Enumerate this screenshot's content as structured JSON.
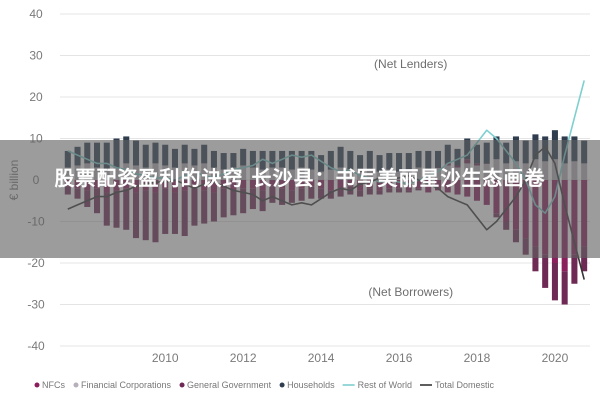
{
  "banner": {
    "title": "股票配资盈利的诀窍 长沙县：书写美丽星沙生态画卷"
  },
  "colors": {
    "nfcs": "#8a1f5c",
    "financial_corporations": "#b7b0bc",
    "general_government": "#6e2a55",
    "households": "#2f3d4f",
    "rest_of_world": "#7ecfcf",
    "total_domestic": "#353535",
    "grid": "#e4e4e4",
    "axis_text": "#7a7a7a"
  },
  "chart_data": {
    "type": "bar",
    "stacked": true,
    "ylabel": "€ billion",
    "ylim": [
      -40,
      40
    ],
    "yticks": [
      -40,
      -30,
      -20,
      -10,
      0,
      10,
      20,
      30,
      40
    ],
    "xlim": [
      2007.3,
      2020.9
    ],
    "xticks": [
      2010,
      2012,
      2014,
      2016,
      2018,
      2020
    ],
    "grid": true,
    "annotations": [
      {
        "text": "(Net Lenders)",
        "x": 2016.3,
        "y": 27
      },
      {
        "text": "(Net Borrowers)",
        "x": 2016.3,
        "y": -28
      }
    ],
    "legend_position": "bottom",
    "x": [
      2007.5,
      2007.75,
      2008.0,
      2008.25,
      2008.5,
      2008.75,
      2009.0,
      2009.25,
      2009.5,
      2009.75,
      2010.0,
      2010.25,
      2010.5,
      2010.75,
      2011.0,
      2011.25,
      2011.5,
      2011.75,
      2012.0,
      2012.25,
      2012.5,
      2012.75,
      2013.0,
      2013.25,
      2013.5,
      2013.75,
      2014.0,
      2014.25,
      2014.5,
      2014.75,
      2015.0,
      2015.25,
      2015.5,
      2015.75,
      2016.0,
      2016.25,
      2016.5,
      2016.75,
      2017.0,
      2017.25,
      2017.5,
      2017.75,
      2018.0,
      2018.25,
      2018.5,
      2018.75,
      2019.0,
      2019.25,
      2019.5,
      2019.75,
      2020.0,
      2020.25,
      2020.5,
      2020.75
    ],
    "series": [
      {
        "name": "NFCs",
        "kind": "bar",
        "values": [
          -1.5,
          -2,
          -2.5,
          -2,
          -3,
          -2.5,
          -2,
          -3,
          -2.5,
          -3,
          -2,
          -3,
          -2.5,
          -2,
          -2.5,
          -3,
          -2,
          -2.5,
          -2,
          -2,
          -2.5,
          -1.5,
          -2,
          -2.5,
          -2,
          -1.5,
          -2,
          -2.5,
          -2,
          -1.5,
          -2.5,
          -2,
          -2.5,
          -2,
          -2,
          -2.5,
          -2,
          -3,
          -2.5,
          -3,
          -3.5,
          -4,
          -5,
          -6,
          -8,
          -10,
          -12,
          -14,
          -16,
          -18,
          -20,
          -22,
          -18,
          -16
        ]
      },
      {
        "name": "Financial Corporations",
        "kind": "bar",
        "values": [
          3,
          3.5,
          4,
          3,
          2.5,
          3,
          4,
          3.5,
          3,
          4,
          3.5,
          3,
          4,
          3.5,
          4,
          3,
          2.5,
          3,
          3.5,
          3,
          2.5,
          3,
          3,
          2.5,
          3,
          2.5,
          2,
          2.5,
          3,
          2.5,
          2,
          2.5,
          2,
          2.5,
          2,
          2.5,
          3,
          2.5,
          3,
          3.5,
          3,
          4,
          3.5,
          4,
          5,
          4,
          4.5,
          4,
          5,
          4.5,
          5,
          4,
          4.5,
          4
        ]
      },
      {
        "name": "General Government",
        "kind": "bar",
        "values": [
          -2,
          -2.5,
          -4,
          -6,
          -8,
          -9,
          -10,
          -11,
          -12,
          -12,
          -11,
          -10,
          -11,
          -9,
          -8,
          -7,
          -7,
          -6,
          -6,
          -5,
          -5,
          -4,
          -4,
          -3,
          -3,
          -3,
          -2.5,
          -2,
          -2,
          -2,
          -1.5,
          -1.5,
          -1,
          -1,
          -1,
          -0.5,
          -0.5,
          0,
          0,
          0.5,
          0.5,
          1,
          0.5,
          0,
          -1,
          -2,
          -3,
          -4,
          -6,
          -8,
          -9,
          -8,
          -7,
          -6
        ]
      },
      {
        "name": "Households",
        "kind": "bar",
        "values": [
          4,
          4.5,
          5,
          6,
          6.5,
          7,
          6.5,
          6,
          5.5,
          5,
          5,
          4.5,
          4.5,
          4,
          4.5,
          4,
          4,
          3.5,
          4,
          4,
          4.5,
          4,
          4,
          4.5,
          4,
          4.5,
          4,
          4.5,
          5,
          4.5,
          4,
          4.5,
          4,
          4,
          4.5,
          4,
          4,
          4.5,
          4,
          4.5,
          4,
          5,
          4.5,
          5,
          5.5,
          5,
          6,
          5.5,
          6,
          6,
          7,
          6.5,
          6,
          5.5
        ]
      },
      {
        "name": "Rest of World",
        "kind": "line",
        "values": [
          7,
          6,
          5,
          4,
          4,
          3,
          2.5,
          1.5,
          1,
          0.5,
          0.5,
          0,
          1,
          2,
          1,
          0.5,
          1.5,
          2.5,
          3,
          3.5,
          5,
          4,
          5,
          6,
          5.5,
          6,
          4.5,
          3,
          2,
          2.5,
          1,
          0.5,
          -0.5,
          0,
          -0.5,
          -1,
          0,
          1,
          2,
          4,
          5,
          6,
          9,
          12,
          10,
          7,
          4,
          0,
          -6,
          -8,
          -4,
          6,
          15,
          24
        ]
      },
      {
        "name": "Total Domestic",
        "kind": "line",
        "values": [
          -7,
          -6,
          -5,
          -4,
          -4,
          -3,
          -2.5,
          -1.5,
          -1,
          -0.5,
          -0.5,
          0,
          -1,
          -2,
          -1,
          -0.5,
          -1.5,
          -2.5,
          -3,
          -3.5,
          -5,
          -4,
          -5,
          -6,
          -5.5,
          -6,
          -4.5,
          -3,
          -2,
          -2.5,
          -1,
          -0.5,
          0.5,
          0,
          0.5,
          1,
          0,
          -1,
          -2,
          -4,
          -5,
          -6,
          -9,
          -12,
          -10,
          -7,
          -4,
          0,
          6,
          8,
          4,
          -6,
          -15,
          -24
        ]
      }
    ]
  },
  "legend": {
    "items": [
      {
        "label": "NFCs",
        "kind": "dot",
        "color": "#8a1f5c"
      },
      {
        "label": "Financial Corporations",
        "kind": "dot",
        "color": "#b7b0bc"
      },
      {
        "label": "General Government",
        "kind": "dot",
        "color": "#6e2a55"
      },
      {
        "label": "Households",
        "kind": "dot",
        "color": "#2f3d4f"
      },
      {
        "label": "Rest of World",
        "kind": "line",
        "color": "#7ecfcf"
      },
      {
        "label": "Total Domestic",
        "kind": "line",
        "color": "#353535"
      }
    ]
  }
}
